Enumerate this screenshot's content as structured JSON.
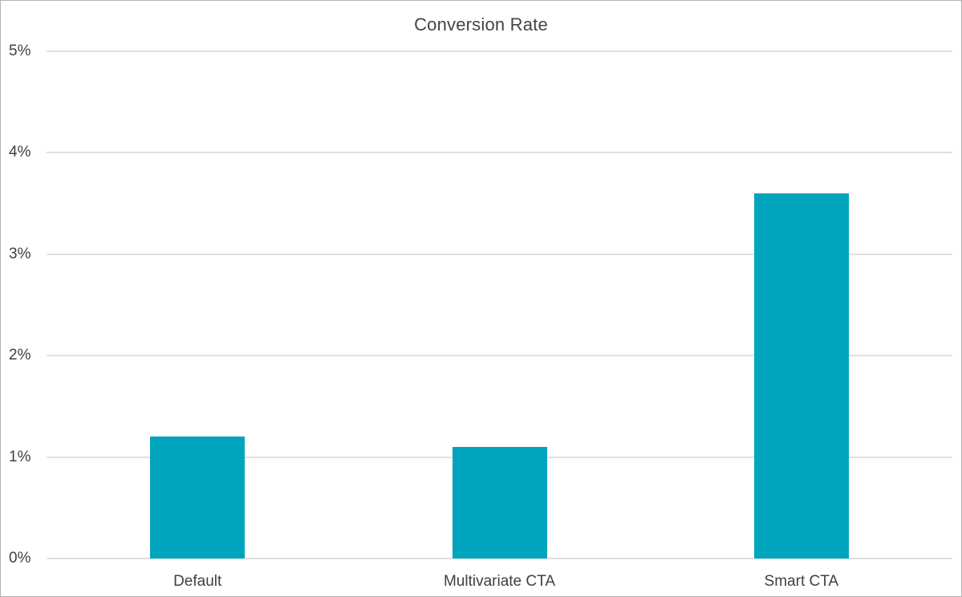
{
  "chart_data": {
    "type": "bar",
    "title": "Conversion Rate",
    "categories": [
      "Default",
      "Multivariate CTA",
      "Smart CTA"
    ],
    "values": [
      1.2,
      1.1,
      3.6
    ],
    "value_unit": "%",
    "xlabel": "",
    "ylabel": "",
    "ylim": [
      0,
      5
    ],
    "y_ticks": [
      {
        "value": 0,
        "label": "0%"
      },
      {
        "value": 1,
        "label": "1%"
      },
      {
        "value": 2,
        "label": "2%"
      },
      {
        "value": 3,
        "label": "3%"
      },
      {
        "value": 4,
        "label": "4%"
      },
      {
        "value": 5,
        "label": "5%"
      }
    ],
    "grid": true,
    "legend": false,
    "colors": {
      "bar": "#00a4bd",
      "gridline": "#e0e0e0",
      "tick_text": "#404040",
      "title_text": "#444444",
      "frame_border": "#b3b3b3",
      "background": "#ffffff"
    }
  }
}
